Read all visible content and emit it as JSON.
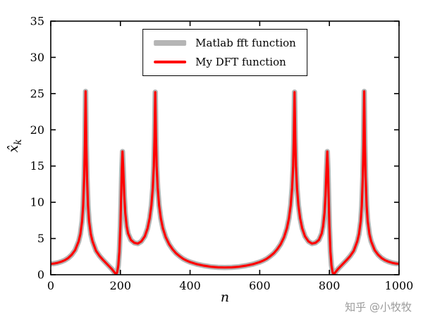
{
  "figure": {
    "background": "#ffffff",
    "watermark": "知乎 @小牧牧"
  },
  "chart_data": {
    "type": "line",
    "title": "",
    "xlabel": "n",
    "ylabel": "x̂_k",
    "ylabel_main": "x̂",
    "ylabel_sub": "k",
    "xlim": [
      0,
      1000
    ],
    "ylim": [
      0,
      35
    ],
    "xticks": [
      0,
      200,
      400,
      600,
      800,
      1000
    ],
    "yticks": [
      0,
      5,
      10,
      15,
      20,
      25,
      30,
      35
    ],
    "grid": false,
    "axis_color": "#000000",
    "legend_position": "top-center-inside",
    "series_note": "Both curves overlap almost exactly; red curve is drawn on top of the thick gray curve.",
    "x": [
      0,
      10,
      20,
      30,
      40,
      50,
      60,
      70,
      80,
      85,
      90,
      93,
      96,
      98,
      100,
      102,
      104,
      107,
      110,
      115,
      120,
      130,
      140,
      150,
      160,
      170,
      175,
      180,
      184,
      188,
      191,
      194,
      197,
      200,
      202,
      204,
      206,
      208,
      211,
      214,
      218,
      222,
      230,
      240,
      250,
      260,
      270,
      278,
      284,
      289,
      293,
      296,
      298,
      300,
      302,
      304,
      307,
      311,
      316,
      322,
      330,
      340,
      350,
      360,
      370,
      380,
      390,
      400,
      420,
      440,
      460,
      480,
      500,
      520,
      540,
      560,
      580,
      600,
      610,
      620,
      630,
      640,
      650,
      660,
      670,
      678,
      684,
      689,
      693,
      696,
      698,
      700,
      702,
      704,
      707,
      711,
      716,
      722,
      730,
      740,
      750,
      760,
      770,
      778,
      782,
      786,
      789,
      792,
      794,
      796,
      798,
      800,
      803,
      806,
      809,
      812,
      816,
      820,
      825,
      830,
      840,
      850,
      860,
      870,
      880,
      885,
      890,
      893,
      896,
      898,
      900,
      902,
      904,
      907,
      910,
      915,
      920,
      930,
      940,
      950,
      960,
      970,
      980,
      990,
      1000
    ],
    "series": [
      {
        "name": "Matlab fft function",
        "color": "#b5b5b5",
        "line_width": 7.5,
        "y": [
          1.5,
          1.55,
          1.65,
          1.8,
          2.0,
          2.3,
          2.75,
          3.4,
          4.6,
          5.6,
          7.4,
          9.5,
          13.5,
          18,
          25.3,
          18,
          13.5,
          9.5,
          7.4,
          5.6,
          4.6,
          3.3,
          2.6,
          2.05,
          1.55,
          1.05,
          0.8,
          0.5,
          0.25,
          0.05,
          0.4,
          1.3,
          3.2,
          6.8,
          10.5,
          14.5,
          17,
          14.8,
          11,
          8.5,
          6.7,
          5.7,
          4.8,
          4.4,
          4.3,
          4.6,
          5.3,
          6.4,
          7.8,
          9.6,
          12,
          15,
          19,
          25.2,
          19,
          15,
          12,
          9.6,
          7.8,
          6.4,
          5.2,
          4.2,
          3.5,
          2.95,
          2.55,
          2.2,
          1.95,
          1.75,
          1.45,
          1.25,
          1.1,
          1.02,
          1.0,
          1.02,
          1.1,
          1.25,
          1.45,
          1.75,
          1.95,
          2.2,
          2.55,
          2.95,
          3.5,
          4.2,
          5.2,
          6.4,
          7.8,
          9.6,
          12,
          15,
          19,
          25.2,
          19,
          15,
          12,
          9.6,
          7.8,
          6.4,
          5.3,
          4.6,
          4.3,
          4.4,
          4.8,
          5.7,
          6.7,
          8.5,
          11,
          14.8,
          17,
          14.5,
          10.5,
          6.8,
          3.2,
          1.3,
          0.4,
          0.05,
          0.25,
          0.5,
          0.8,
          1.05,
          1.55,
          2.05,
          2.6,
          3.3,
          4.6,
          5.6,
          7.4,
          9.5,
          13.5,
          18,
          25.3,
          18,
          13.5,
          9.5,
          7.4,
          5.6,
          4.6,
          3.4,
          2.75,
          2.3,
          2.0,
          1.8,
          1.65,
          1.55,
          1.5
        ]
      },
      {
        "name": "My DFT function",
        "color": "#ff0000",
        "line_width": 3.2,
        "y": [
          1.5,
          1.55,
          1.65,
          1.8,
          2.0,
          2.3,
          2.75,
          3.4,
          4.6,
          5.6,
          7.4,
          9.5,
          13.5,
          18,
          25.3,
          18,
          13.5,
          9.5,
          7.4,
          5.6,
          4.6,
          3.3,
          2.6,
          2.05,
          1.55,
          1.05,
          0.8,
          0.5,
          0.25,
          0.05,
          0.4,
          1.3,
          3.2,
          6.8,
          10.5,
          14.5,
          17,
          14.8,
          11,
          8.5,
          6.7,
          5.7,
          4.8,
          4.4,
          4.3,
          4.6,
          5.3,
          6.4,
          7.8,
          9.6,
          12,
          15,
          19,
          25.2,
          19,
          15,
          12,
          9.6,
          7.8,
          6.4,
          5.2,
          4.2,
          3.5,
          2.95,
          2.55,
          2.2,
          1.95,
          1.75,
          1.45,
          1.25,
          1.1,
          1.02,
          1.0,
          1.02,
          1.1,
          1.25,
          1.45,
          1.75,
          1.95,
          2.2,
          2.55,
          2.95,
          3.5,
          4.2,
          5.2,
          6.4,
          7.8,
          9.6,
          12,
          15,
          19,
          25.2,
          19,
          15,
          12,
          9.6,
          7.8,
          6.4,
          5.3,
          4.6,
          4.3,
          4.4,
          4.8,
          5.7,
          6.7,
          8.5,
          11,
          14.8,
          17,
          14.5,
          10.5,
          6.8,
          3.2,
          1.3,
          0.4,
          0.05,
          0.25,
          0.5,
          0.8,
          1.05,
          1.55,
          2.05,
          2.6,
          3.3,
          4.6,
          5.6,
          7.4,
          9.5,
          13.5,
          18,
          25.3,
          18,
          13.5,
          9.5,
          7.4,
          5.6,
          4.6,
          3.4,
          2.75,
          2.3,
          2.0,
          1.8,
          1.65,
          1.55,
          1.5
        ]
      }
    ]
  }
}
